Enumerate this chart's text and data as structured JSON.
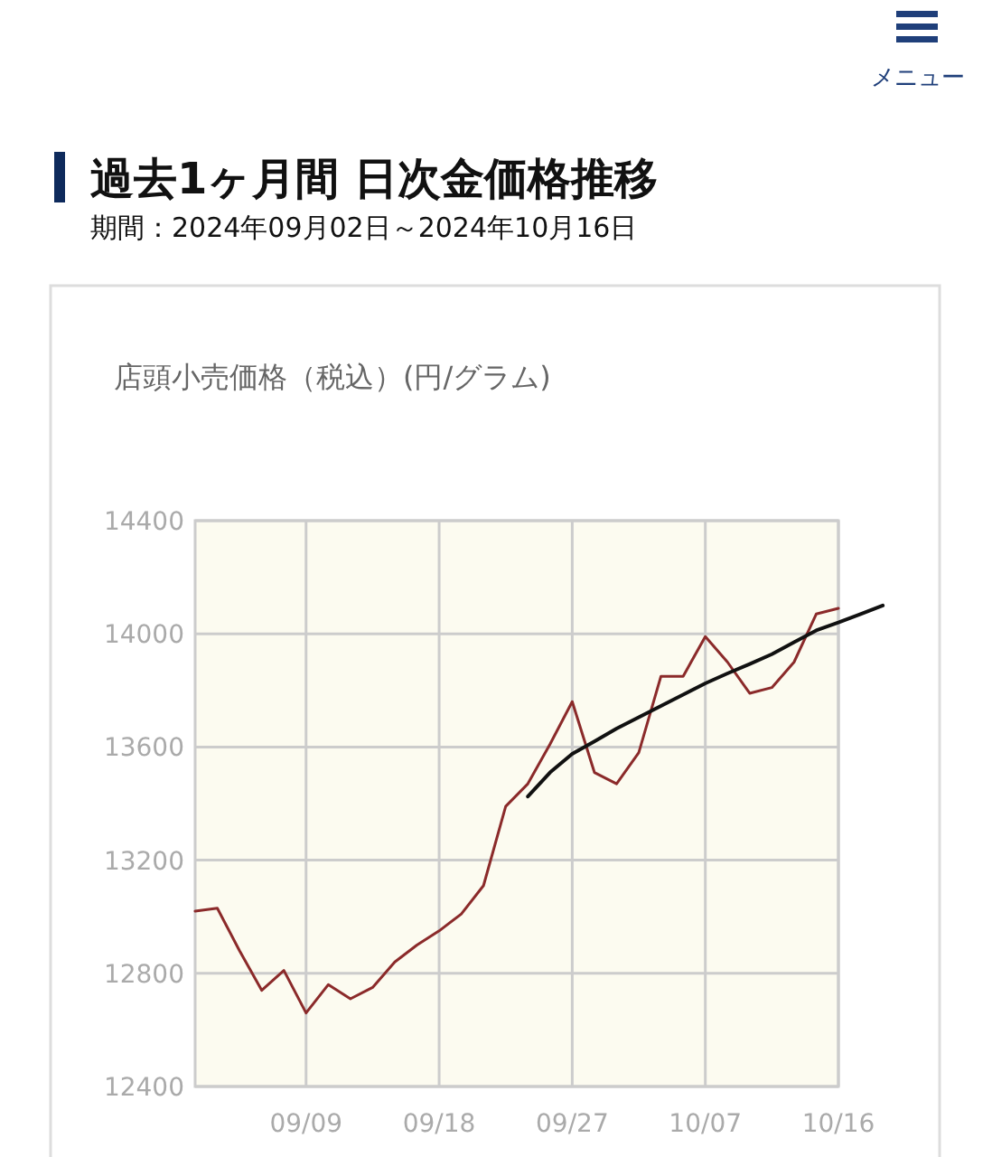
{
  "chart_data": {
    "type": "line",
    "title": "過去1ヶ月間 日次金価格推移",
    "subtitle": "期間：2024年09月02日～2024年10月16日",
    "ylabel": "店頭小売価格（税込）(円/グラム)",
    "annotations": [
      "メニュー"
    ],
    "categories": [
      null,
      null,
      null,
      null,
      null,
      "09/09",
      null,
      null,
      null,
      null,
      null,
      "09/18",
      null,
      null,
      null,
      null,
      null,
      "09/27",
      null,
      null,
      null,
      null,
      null,
      "10/07",
      null,
      null,
      null,
      null,
      null,
      "10/16",
      null,
      null
    ],
    "series": [
      {
        "color": "#8b2a2a",
        "values": [
          13020,
          13030,
          12880,
          12740,
          12810,
          12660,
          12760,
          12710,
          12750,
          12840,
          12900,
          12950,
          13010,
          13110,
          13390,
          13470,
          13610,
          13760,
          13510,
          13470,
          13580,
          13850,
          13850,
          13990,
          13900,
          13790,
          13810,
          13900,
          14070,
          14090,
          null,
          null
        ]
      },
      {
        "type": "line",
        "color": "#111111",
        "values": [
          null,
          null,
          null,
          null,
          null,
          null,
          null,
          null,
          null,
          null,
          null,
          null,
          null,
          null,
          null,
          13425,
          13510,
          13576,
          13620,
          13665,
          13705,
          13745,
          13785,
          13825,
          13860,
          13893,
          13928,
          13970,
          14012,
          14040,
          14070,
          14100
        ]
      }
    ],
    "ylim": [
      12400,
      14400
    ],
    "yticks": [
      12400,
      12800,
      13200,
      13600,
      14000,
      14400
    ],
    "grid": true
  }
}
